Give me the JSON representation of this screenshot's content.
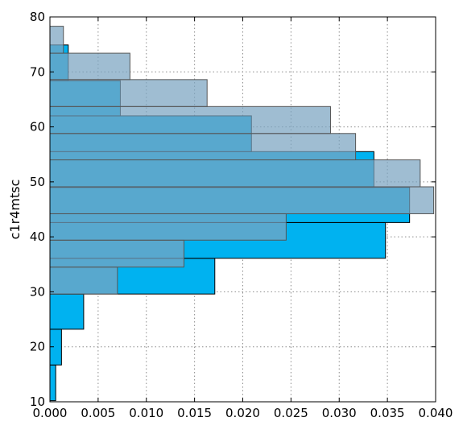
{
  "chart_data": {
    "type": "histogram",
    "orientation": "horizontal",
    "title": "",
    "xlabel": "",
    "ylabel": "c1r4mtsc",
    "xlim": [
      0.0,
      0.04
    ],
    "ylim": [
      10,
      80
    ],
    "x_ticks": [
      "0.000",
      "0.005",
      "0.010",
      "0.015",
      "0.020",
      "0.025",
      "0.030",
      "0.035",
      "0.040"
    ],
    "y_ticks": [
      "10",
      "20",
      "30",
      "40",
      "50",
      "60",
      "70",
      "80"
    ],
    "grid": true,
    "series": [
      {
        "color": "#00b2f0",
        "opacity": 1.0,
        "edge": "#000000",
        "bins": [
          {
            "y0": 10.2,
            "y1": 16.7,
            "value": 0.0006
          },
          {
            "y0": 16.7,
            "y1": 23.2,
            "value": 0.0012
          },
          {
            "y0": 23.2,
            "y1": 29.6,
            "value": 0.0035
          },
          {
            "y0": 29.6,
            "y1": 36.1,
            "value": 0.0171
          },
          {
            "y0": 36.1,
            "y1": 42.6,
            "value": 0.0348
          },
          {
            "y0": 42.6,
            "y1": 49.0,
            "value": 0.0373
          },
          {
            "y0": 49.0,
            "y1": 55.5,
            "value": 0.0336
          },
          {
            "y0": 55.5,
            "y1": 62.0,
            "value": 0.0209
          },
          {
            "y0": 62.0,
            "y1": 68.4,
            "value": 0.0073
          },
          {
            "y0": 68.4,
            "y1": 74.9,
            "value": 0.0019
          }
        ]
      },
      {
        "color": "#7aa3c0",
        "opacity": 0.72,
        "edge": "#555555",
        "bins": [
          {
            "y0": 29.6,
            "y1": 34.5,
            "value": 0.007
          },
          {
            "y0": 34.5,
            "y1": 39.4,
            "value": 0.0139
          },
          {
            "y0": 39.4,
            "y1": 44.2,
            "value": 0.0245
          },
          {
            "y0": 44.2,
            "y1": 49.1,
            "value": 0.0398
          },
          {
            "y0": 49.1,
            "y1": 54.0,
            "value": 0.0384
          },
          {
            "y0": 54.0,
            "y1": 58.8,
            "value": 0.0317
          },
          {
            "y0": 58.8,
            "y1": 63.7,
            "value": 0.0291
          },
          {
            "y0": 63.7,
            "y1": 68.6,
            "value": 0.0163
          },
          {
            "y0": 68.6,
            "y1": 73.4,
            "value": 0.0083
          },
          {
            "y0": 73.4,
            "y1": 78.3,
            "value": 0.0014
          }
        ]
      }
    ]
  }
}
